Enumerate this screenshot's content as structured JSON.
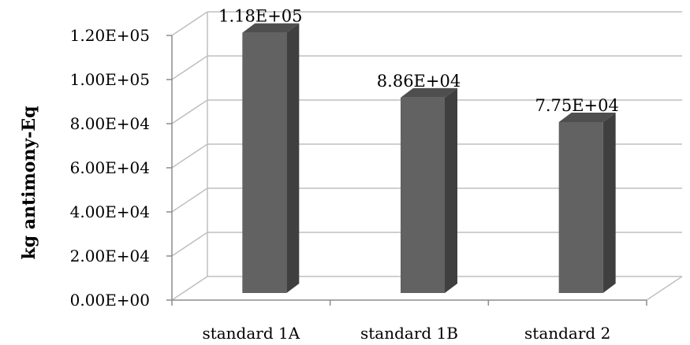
{
  "chart_data": {
    "type": "bar",
    "categories": [
      "standard 1A",
      "standard 1B",
      "standard 2"
    ],
    "values": [
      118000,
      88600,
      77500
    ],
    "value_labels": [
      "1.18E+05",
      "8.86E+04",
      "7.75E+04"
    ],
    "ylabel": "kg antimony-Eq",
    "ylim": [
      0,
      120000
    ],
    "yticks": [
      0,
      20000,
      40000,
      60000,
      80000,
      100000,
      120000
    ],
    "ytick_labels": [
      "0.00E+00",
      "2.00E+04",
      "4.00E+04",
      "6.00E+04",
      "8.00E+04",
      "1.00E+05",
      "1.20E+05"
    ],
    "grid": true,
    "style": "3d-column",
    "colors": {
      "bar_front": "#626262",
      "bar_side": "#3f3f3f",
      "bar_top": "#4e4e4e",
      "grid": "#bfbfbf",
      "axis": "#8c8c8c"
    }
  }
}
